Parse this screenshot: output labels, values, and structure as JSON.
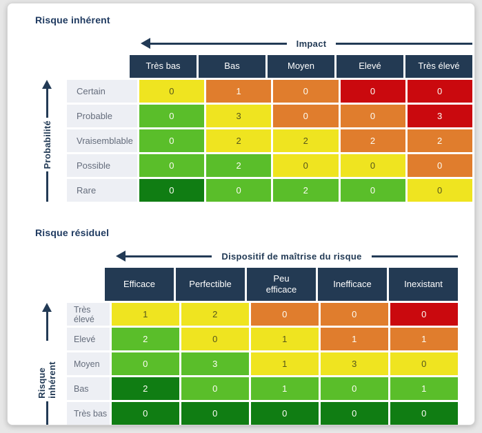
{
  "colors": {
    "navy": "#233a53",
    "yellow": "#efe420",
    "orange": "#e07d2d",
    "red": "#ca090e",
    "green": "#5abe2a",
    "dark_green": "#107d13",
    "row_label_bg": "#edeff4",
    "row_label_text": "#646c7b"
  },
  "icons": {
    "x_axis_arrow": "arrow-left",
    "y_axis_arrow": "arrow-up"
  },
  "chart_data": [
    {
      "type": "heatmap",
      "title": "Risque inhérent",
      "xlabel": "Impact",
      "ylabel": "Probabilité",
      "x_categories": [
        "Très bas",
        "Bas",
        "Moyen",
        "Elevé",
        "Très élevé"
      ],
      "y_categories": [
        "Certain",
        "Probable",
        "Vraisemblable",
        "Possible",
        "Rare"
      ],
      "values": [
        [
          0,
          1,
          0,
          0,
          0
        ],
        [
          0,
          3,
          0,
          0,
          3
        ],
        [
          0,
          2,
          2,
          2,
          2
        ],
        [
          0,
          2,
          0,
          0,
          0
        ],
        [
          0,
          0,
          2,
          0,
          0
        ]
      ],
      "cell_colors": [
        [
          "yellow",
          "orange",
          "orange",
          "red",
          "red"
        ],
        [
          "green",
          "yellow",
          "orange",
          "orange",
          "red"
        ],
        [
          "green",
          "yellow",
          "yellow",
          "orange",
          "orange"
        ],
        [
          "green",
          "green",
          "yellow",
          "yellow",
          "orange"
        ],
        [
          "dark_green",
          "green",
          "green",
          "green",
          "yellow"
        ]
      ],
      "legend": "off",
      "grid": "off"
    },
    {
      "type": "heatmap",
      "title": "Risque résiduel",
      "xlabel": "Dispositif de maîtrise du risque",
      "ylabel": "Risque inhérent",
      "x_categories": [
        "Efficace",
        "Perfectible",
        "Peu\nefficace",
        "Inefficace",
        "Inexistant"
      ],
      "y_categories": [
        "Très élevé",
        "Elevé",
        "Moyen",
        "Bas",
        "Très bas"
      ],
      "values": [
        [
          1,
          2,
          0,
          0,
          0
        ],
        [
          2,
          0,
          1,
          1,
          1
        ],
        [
          0,
          3,
          1,
          3,
          0
        ],
        [
          2,
          0,
          1,
          0,
          1
        ],
        [
          0,
          0,
          0,
          0,
          0
        ]
      ],
      "cell_colors": [
        [
          "yellow",
          "yellow",
          "orange",
          "orange",
          "red"
        ],
        [
          "green",
          "yellow",
          "yellow",
          "orange",
          "orange"
        ],
        [
          "green",
          "green",
          "yellow",
          "yellow",
          "yellow"
        ],
        [
          "dark_green",
          "green",
          "green",
          "green",
          "green"
        ],
        [
          "dark_green",
          "dark_green",
          "dark_green",
          "dark_green",
          "dark_green"
        ]
      ],
      "legend": "off",
      "grid": "off"
    }
  ]
}
